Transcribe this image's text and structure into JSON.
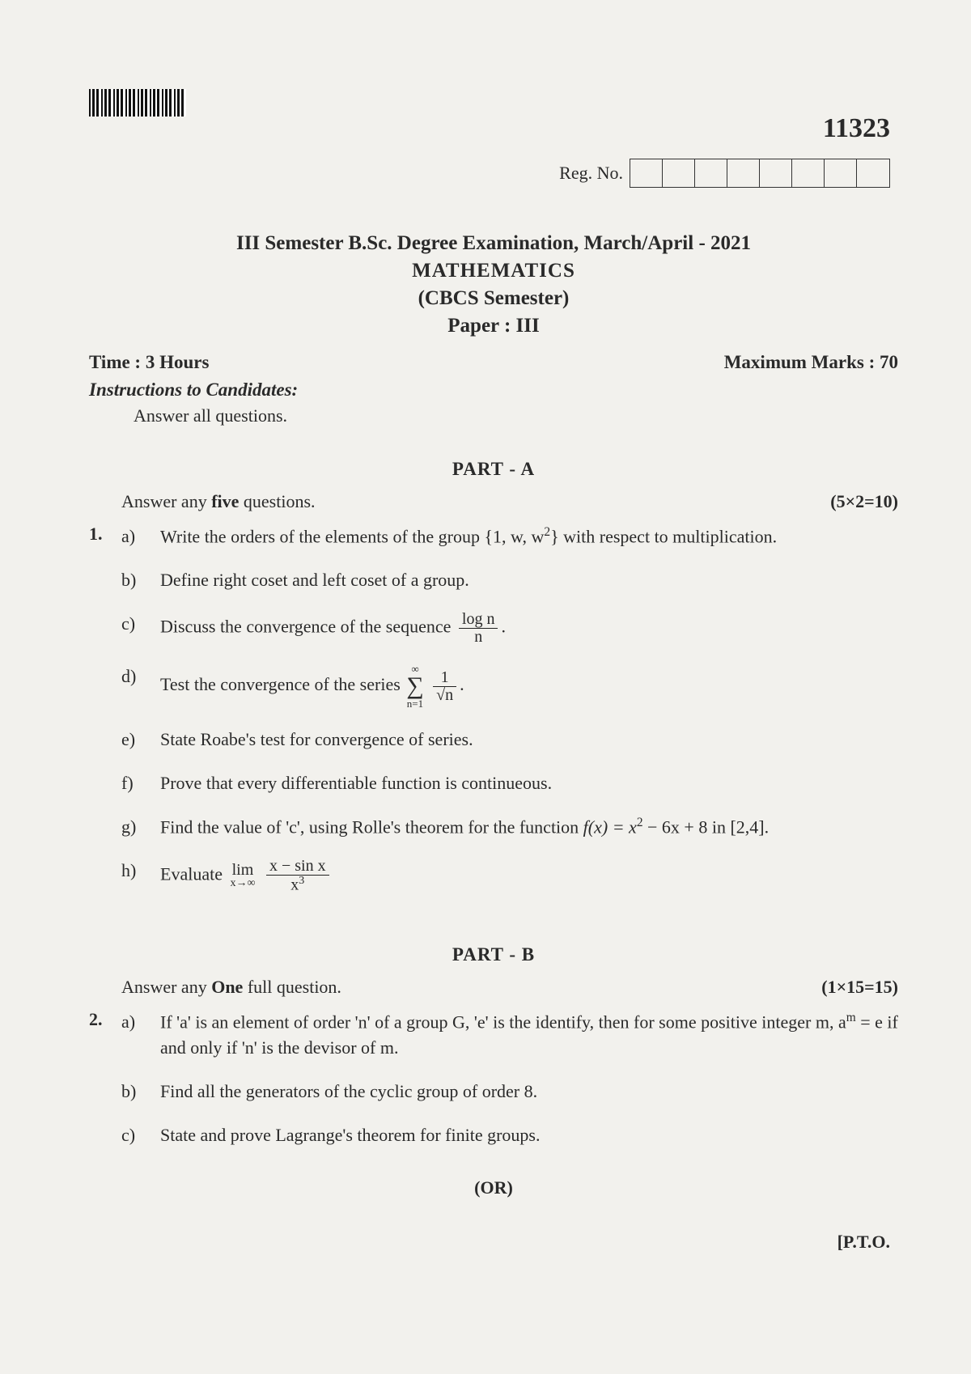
{
  "meta": {
    "paper_code": "11323",
    "reg_label": "Reg. No.",
    "reg_cell_count": 8,
    "pto": "[P.T.O."
  },
  "header": {
    "line1": "III Semester B.Sc. Degree Examination, March/April - 2021",
    "line2": "MATHEMATICS",
    "line3": "(CBCS Semester)",
    "line4": "Paper :  III",
    "time": "Time : 3 Hours",
    "marks": "Maximum Marks : 70",
    "instr_title": "Instructions to Candidates:",
    "instr_body": "Answer all questions."
  },
  "partA": {
    "title": "PART - A",
    "intro_left_pre": "Answer any ",
    "intro_left_bold": "five",
    "intro_left_post": " questions.",
    "intro_right": "(5×2=10)",
    "qnum": "1.",
    "items": {
      "a": {
        "label": "a)",
        "text_pre": "Write the orders of the elements of the group ",
        "set": "{1, w, w",
        "set_sup": "2",
        "set_close": "}",
        "text_post": " with respect to multiplication."
      },
      "b": {
        "label": "b)",
        "text": "Define right coset and left coset of a group."
      },
      "c": {
        "label": "c)",
        "pre": "Discuss the convergence of the sequence ",
        "frac_num": "log n",
        "frac_den": "n",
        "post": "."
      },
      "d": {
        "label": "d)",
        "pre": "Test the convergence of the series ",
        "sigma_top": "∞",
        "sigma_bot": "n=1",
        "frac_num": "1",
        "frac_den": "√n",
        "post": "."
      },
      "e": {
        "label": "e)",
        "text": "State Roabe's test for convergence of series."
      },
      "f": {
        "label": "f)",
        "text": "Prove that every differentiable function is continueous."
      },
      "g": {
        "label": "g)",
        "pre": "Find the value of 'c', using Rolle's theorem for the function  ",
        "fn": "f(x) = x",
        "fn_sup": "2",
        "fn_rest": " − 6x + 8  in [2,4]."
      },
      "h": {
        "label": "h)",
        "pre": "Evaluate ",
        "lim_top": "lim",
        "lim_bot": "x→∞",
        "frac_num": "x − sin x",
        "frac_den": "x",
        "frac_den_sup": "3"
      }
    }
  },
  "partB": {
    "title": "PART - B",
    "intro_left_pre": "Answer any ",
    "intro_left_bold": "One",
    "intro_left_post": " full question.",
    "intro_right": "(1×15=15)",
    "qnum": "2.",
    "items": {
      "a": {
        "label": "a)",
        "line": "If 'a' is an element of order 'n' of a group G, 'e' is the identify, then for some positive integer m, a",
        "sup": "m",
        "rest": " = e if and only if 'n' is the devisor of m."
      },
      "b": {
        "label": "b)",
        "text": "Find all the generators of the cyclic group of order 8."
      },
      "c": {
        "label": "c)",
        "text": "State and prove Lagrange's theorem for finite groups."
      }
    },
    "or": "(OR)"
  }
}
